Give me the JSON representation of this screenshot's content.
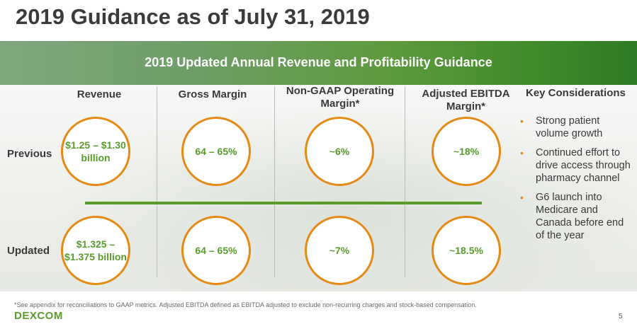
{
  "title": "2019 Guidance as of July 31, 2019",
  "banner": "2019 Updated Annual Revenue and Profitability Guidance",
  "columns": [
    {
      "label": "Revenue"
    },
    {
      "label": "Gross Margin"
    },
    {
      "label": "Non-GAAP Operating Margin*"
    },
    {
      "label": "Adjusted EBITDA Margin*"
    }
  ],
  "rows": {
    "previous": {
      "label": "Previous",
      "values": [
        "$1.25 – $1.30 billion",
        "64 – 65%",
        "~6%",
        "~18%"
      ]
    },
    "updated": {
      "label": "Updated",
      "values": [
        "$1.325 – $1.375 billion",
        "64 – 65%",
        "~7%",
        "~18.5%"
      ]
    }
  },
  "key_considerations": {
    "title": "Key Considerations",
    "items": [
      "Strong patient volume growth",
      "Continued effort to drive access through pharmacy channel",
      "G6 launch into Medicare and Canada before end of the year"
    ]
  },
  "footnote": "*See appendix for reconciliations to GAAP metrics. Adjusted EBITDA defined as EBITDA adjusted to exclude non-recurring charges and stock-based compensation.",
  "logo_text": "DEXCOM",
  "page_number": "5",
  "colors": {
    "accent_green": "#5a9c2c",
    "circle_orange": "#e58a14"
  }
}
